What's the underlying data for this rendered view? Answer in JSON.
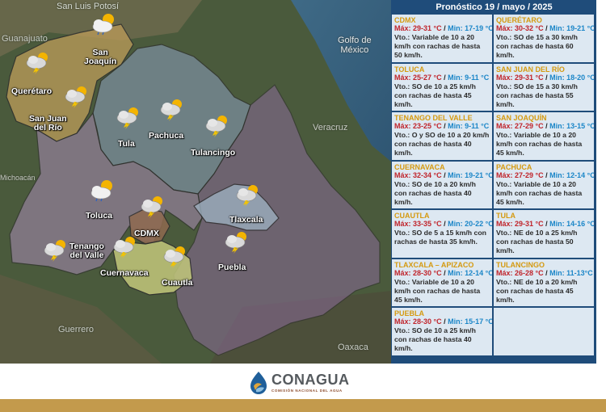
{
  "title": "Pronóstico 19 / mayo / 2025",
  "map": {
    "regions": [
      {
        "id": "san-luis-potosi",
        "text": "San Luis Potosí"
      },
      {
        "id": "guanajuato",
        "text": "Guanajuato"
      },
      {
        "id": "golfo",
        "text": "Golfo de\nMéxico"
      },
      {
        "id": "veracruz",
        "text": "Veracruz"
      },
      {
        "id": "michoacan",
        "text": "Michoacán"
      },
      {
        "id": "guerrero",
        "text": "Guerrero"
      },
      {
        "id": "oaxaca",
        "text": "Oaxaca"
      }
    ],
    "cities": [
      {
        "id": "san-joaquin",
        "text": "San\nJoaquín",
        "icon": "sun-cloud-icon"
      },
      {
        "id": "queretaro",
        "text": "Querétaro",
        "icon": "storm-cloud-icon"
      },
      {
        "id": "san-juan",
        "text": "San Juan\ndel Río",
        "icon": "storm-cloud-icon"
      },
      {
        "id": "tula",
        "text": "Tula",
        "icon": "storm-cloud-icon"
      },
      {
        "id": "pachuca",
        "text": "Pachuca",
        "icon": "storm-cloud-icon"
      },
      {
        "id": "tulancingo",
        "text": "Tulancingo",
        "icon": "storm-cloud-icon"
      },
      {
        "id": "toluca",
        "text": "Toluca",
        "icon": "sun-cloud-icon"
      },
      {
        "id": "cdmx",
        "text": "CDMX",
        "icon": "storm-cloud-icon"
      },
      {
        "id": "tlaxcala",
        "text": "Tlaxcala",
        "icon": "storm-cloud-icon"
      },
      {
        "id": "tenango",
        "text": "Tenango\ndel Valle",
        "icon": "storm-cloud-icon"
      },
      {
        "id": "cuernavaca",
        "text": "Cuernavaca",
        "icon": "storm-cloud-icon"
      },
      {
        "id": "cuautla",
        "text": "Cuautla",
        "icon": "storm-cloud-icon"
      },
      {
        "id": "puebla",
        "text": "Puebla",
        "icon": "storm-cloud-icon"
      }
    ]
  },
  "forecasts": [
    {
      "city": "CDMX",
      "max": "Máx: 29-31 °C",
      "min": "Min: 17-19 °C",
      "wind": "Vto.: Variable de 10 a 20 km/h con rachas de hasta 50 km/h."
    },
    {
      "city": "QUERÉTARO",
      "max": "Máx: 30-32 °C",
      "min": "Min: 19-21 °C",
      "wind": "Vto.: SO de 15 a 30 km/h con rachas de hasta 60 km/h."
    },
    {
      "city": "TOLUCA",
      "max": "Máx: 25-27 °C",
      "min": "Min: 9-11 °C",
      "wind": "Vto.: SO de 10 a 25 km/h con rachas de hasta 45 km/h."
    },
    {
      "city": "SAN JUAN DEL RÍO",
      "max": "Máx: 29-31 °C",
      "min": "Min: 18-20 °C",
      "wind": "Vto.: SO de 15 a 30 km/h con rachas de hasta 55 km/h."
    },
    {
      "city": "TENANGO DEL VALLE",
      "max": "Máx: 23-25 °C",
      "min": "Min: 9-11 °C",
      "wind": "Vto.: O y SO de 10 a 20 km/h con rachas de hasta 40 km/h."
    },
    {
      "city": "SAN JOAQUÍN",
      "max": "Máx: 27-29 °C",
      "min": "Min: 13-15 °C",
      "wind": "Vto.: Variable de 10 a 20 km/h con rachas de hasta 45 km/h."
    },
    {
      "city": "CUERNAVACA",
      "max": "Máx: 32-34 °C",
      "min": "Min: 19-21 °C",
      "wind": "Vto.: SO de 10 a 20 km/h con rachas de hasta 40 km/h."
    },
    {
      "city": "PACHUCA",
      "max": "Máx: 27-29 °C",
      "min": "Min: 12-14 °C",
      "wind": "Vto.: Variable de 10 a 20 km/h con rachas de hasta 45 km/h."
    },
    {
      "city": "CUAUTLA",
      "max": "Máx: 33-35 °C",
      "min": "Min: 20-22 °C",
      "wind": "Vto.: SO de 5 a 15 km/h con rachas de hasta 35 km/h."
    },
    {
      "city": "TULA",
      "max": "Máx: 29-31 °C",
      "min": "Min: 14-16 °C",
      "wind": "Vto.: NE de 10 a 25 km/h con rachas de hasta 50 km/h."
    },
    {
      "city": "TLAXCALA – APIZACO",
      "max": "Máx: 28-30 °C",
      "min": "Min: 12-14 °C",
      "wind": "Vto.: Variable de 10 a 20 km/h con rachas de hasta 45 km/h."
    },
    {
      "city": "TULANCINGO",
      "max": "Máx: 26-28 °C",
      "min": "Min: 11-13°C",
      "wind": "Vto.: NE de 10 a 20 km/h con rachas de hasta 45 km/h."
    },
    {
      "city": "PUEBLA",
      "max": "Máx: 28-30 °C",
      "min": "Min: 15-17 °C",
      "wind": "Vto.: SO de 10 a 25 km/h con rachas de hasta 40 km/h."
    }
  ],
  "footer": {
    "brand": "CONAGUA",
    "subtitle": "COMISIÓN NACIONAL DEL AGUA"
  }
}
